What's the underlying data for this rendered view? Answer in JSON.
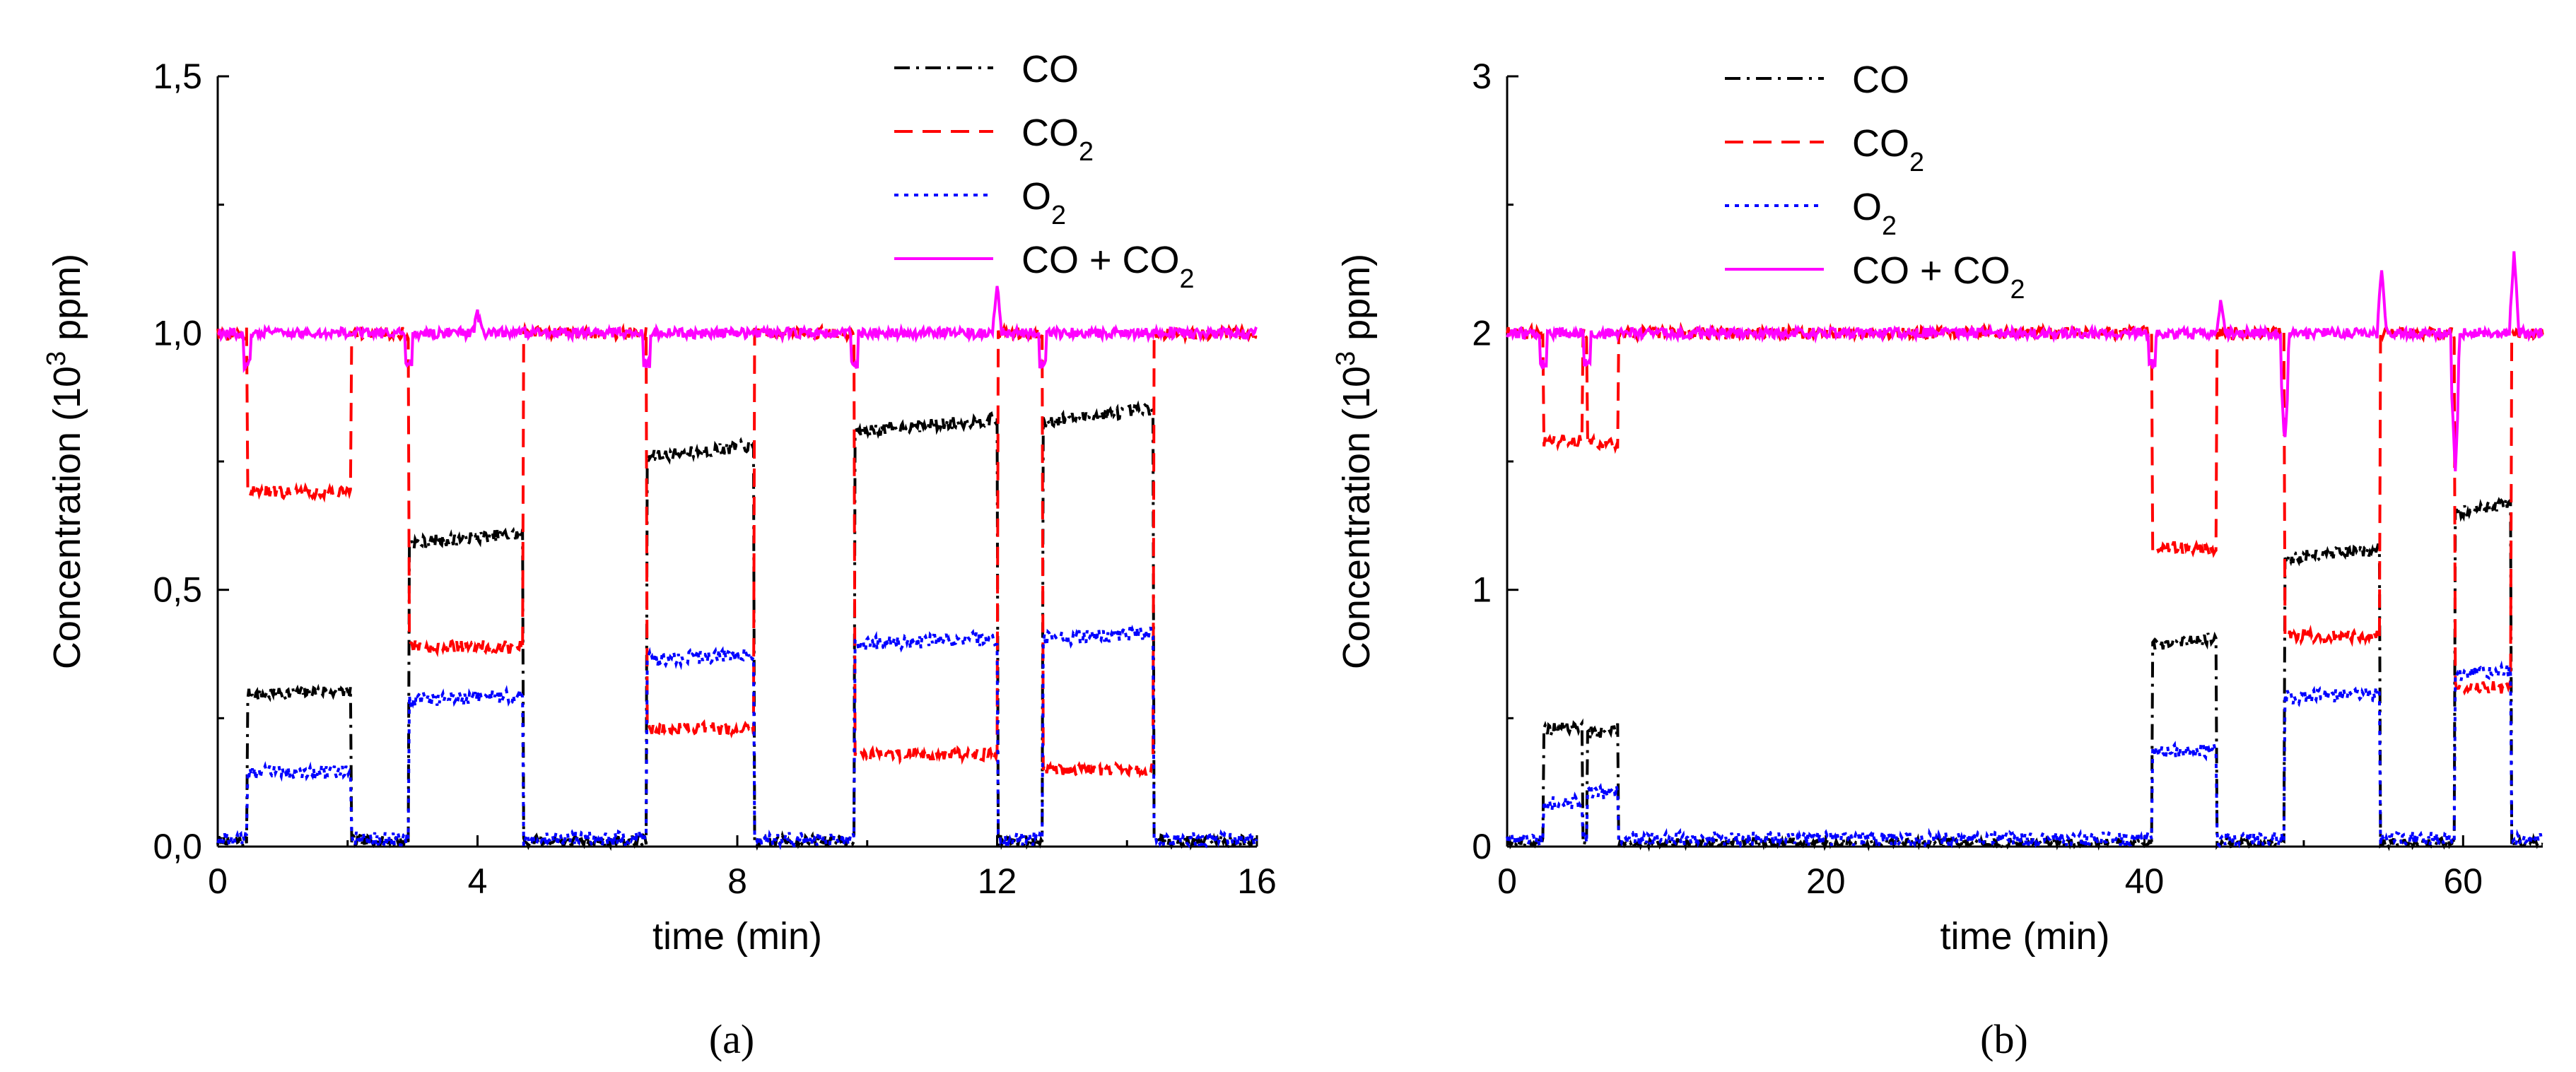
{
  "chart_data": [
    {
      "type": "line",
      "panel": "(a)",
      "xlabel": "time (min)",
      "ylabel": "Concentration (10<sup>3</sup> ppm)",
      "xlim": [
        0,
        16
      ],
      "ylim": [
        0,
        1.5
      ],
      "x_ticks": [
        0,
        4,
        8,
        12,
        16
      ],
      "x_tick_labels": [
        "0",
        "4",
        "8",
        "12",
        "16"
      ],
      "y_ticks": [
        0,
        0.5,
        1.0,
        1.5
      ],
      "y_tick_labels": [
        "0,0",
        "0,5",
        "1,0",
        "1,5"
      ],
      "legend_position": "top-right",
      "segments": [
        {
          "t0": 0.45,
          "t1": 2.05,
          "co": 0.3,
          "co2": 0.69,
          "o2": 0.145
        },
        {
          "t0": 2.95,
          "t1": 4.7,
          "co": 0.6,
          "co2": 0.39,
          "o2": 0.29
        },
        {
          "t0": 6.6,
          "t1": 8.25,
          "co": 0.77,
          "co2": 0.23,
          "o2": 0.37
        },
        {
          "t0": 9.8,
          "t1": 12.0,
          "co": 0.82,
          "co2": 0.18,
          "o2": 0.4
        },
        {
          "t0": 12.7,
          "t1": 14.4,
          "co": 0.84,
          "co2": 0.15,
          "o2": 0.41
        }
      ],
      "baseline": {
        "co": 0.01,
        "co2": 1.0,
        "o2": 0.015,
        "sum": 1.0
      },
      "sum_spikes": [
        {
          "t": 12.0,
          "v": 1.09
        },
        {
          "t": 4.0,
          "v": 1.04
        }
      ],
      "series": [
        {
          "name": "CO",
          "key": "co",
          "color": "#000000",
          "dash": "22,9,4,9"
        },
        {
          "name": "CO<sub>2</sub>",
          "key": "co2",
          "color": "#ff0000",
          "dash": "26,14"
        },
        {
          "name": "O<sub>2</sub>",
          "key": "o2",
          "color": "#0000ff",
          "dash": "6,8"
        },
        {
          "name": "CO + CO<sub>2</sub>",
          "key": "sum",
          "color": "#ff00ff",
          "dash": ""
        }
      ]
    },
    {
      "type": "line",
      "panel": "(b)",
      "xlabel": "time (min)",
      "ylabel": "Concentration (10<sup>3</sup> ppm)",
      "xlim": [
        0,
        65
      ],
      "ylim": [
        0,
        3
      ],
      "x_ticks": [
        0,
        20,
        40,
        60
      ],
      "x_tick_labels": [
        "0",
        "20",
        "40",
        "60"
      ],
      "y_ticks": [
        0,
        1,
        2,
        3
      ],
      "y_tick_labels": [
        "0",
        "1",
        "2",
        "3"
      ],
      "legend_position": "top-center",
      "segments": [
        {
          "t0": 2.3,
          "t1": 4.7,
          "co": 0.46,
          "co2": 1.58,
          "o2": 0.17
        },
        {
          "t0": 5.0,
          "t1": 7.0,
          "co": 0.45,
          "co2": 1.57,
          "o2": 0.21
        },
        {
          "t0": 40.5,
          "t1": 44.5,
          "co": 0.8,
          "co2": 1.16,
          "o2": 0.37
        },
        {
          "t0": 48.8,
          "t1": 54.8,
          "co": 1.14,
          "co2": 0.82,
          "o2": 0.59
        },
        {
          "t0": 59.5,
          "t1": 63.0,
          "co": 1.32,
          "co2": 0.62,
          "o2": 0.68
        }
      ],
      "baseline": {
        "co": 0.01,
        "co2": 2.0,
        "o2": 0.03,
        "sum": 2.0
      },
      "sum_spikes": [
        {
          "t": 44.8,
          "v": 2.13
        },
        {
          "t": 54.9,
          "v": 2.27
        },
        {
          "t": 63.2,
          "v": 2.34
        },
        {
          "t": 48.8,
          "v": 1.7
        },
        {
          "t": 59.5,
          "v": 1.58
        }
      ],
      "series": [
        {
          "name": "CO",
          "key": "co",
          "color": "#000000",
          "dash": "22,9,4,9"
        },
        {
          "name": "CO<sub>2</sub>",
          "key": "co2",
          "color": "#ff0000",
          "dash": "26,14"
        },
        {
          "name": "O<sub>2</sub>",
          "key": "o2",
          "color": "#0000ff",
          "dash": "6,8"
        },
        {
          "name": "CO + CO<sub>2</sub>",
          "key": "sum",
          "color": "#ff00ff",
          "dash": ""
        }
      ]
    }
  ],
  "captions": [
    "(a)",
    "(b)"
  ]
}
